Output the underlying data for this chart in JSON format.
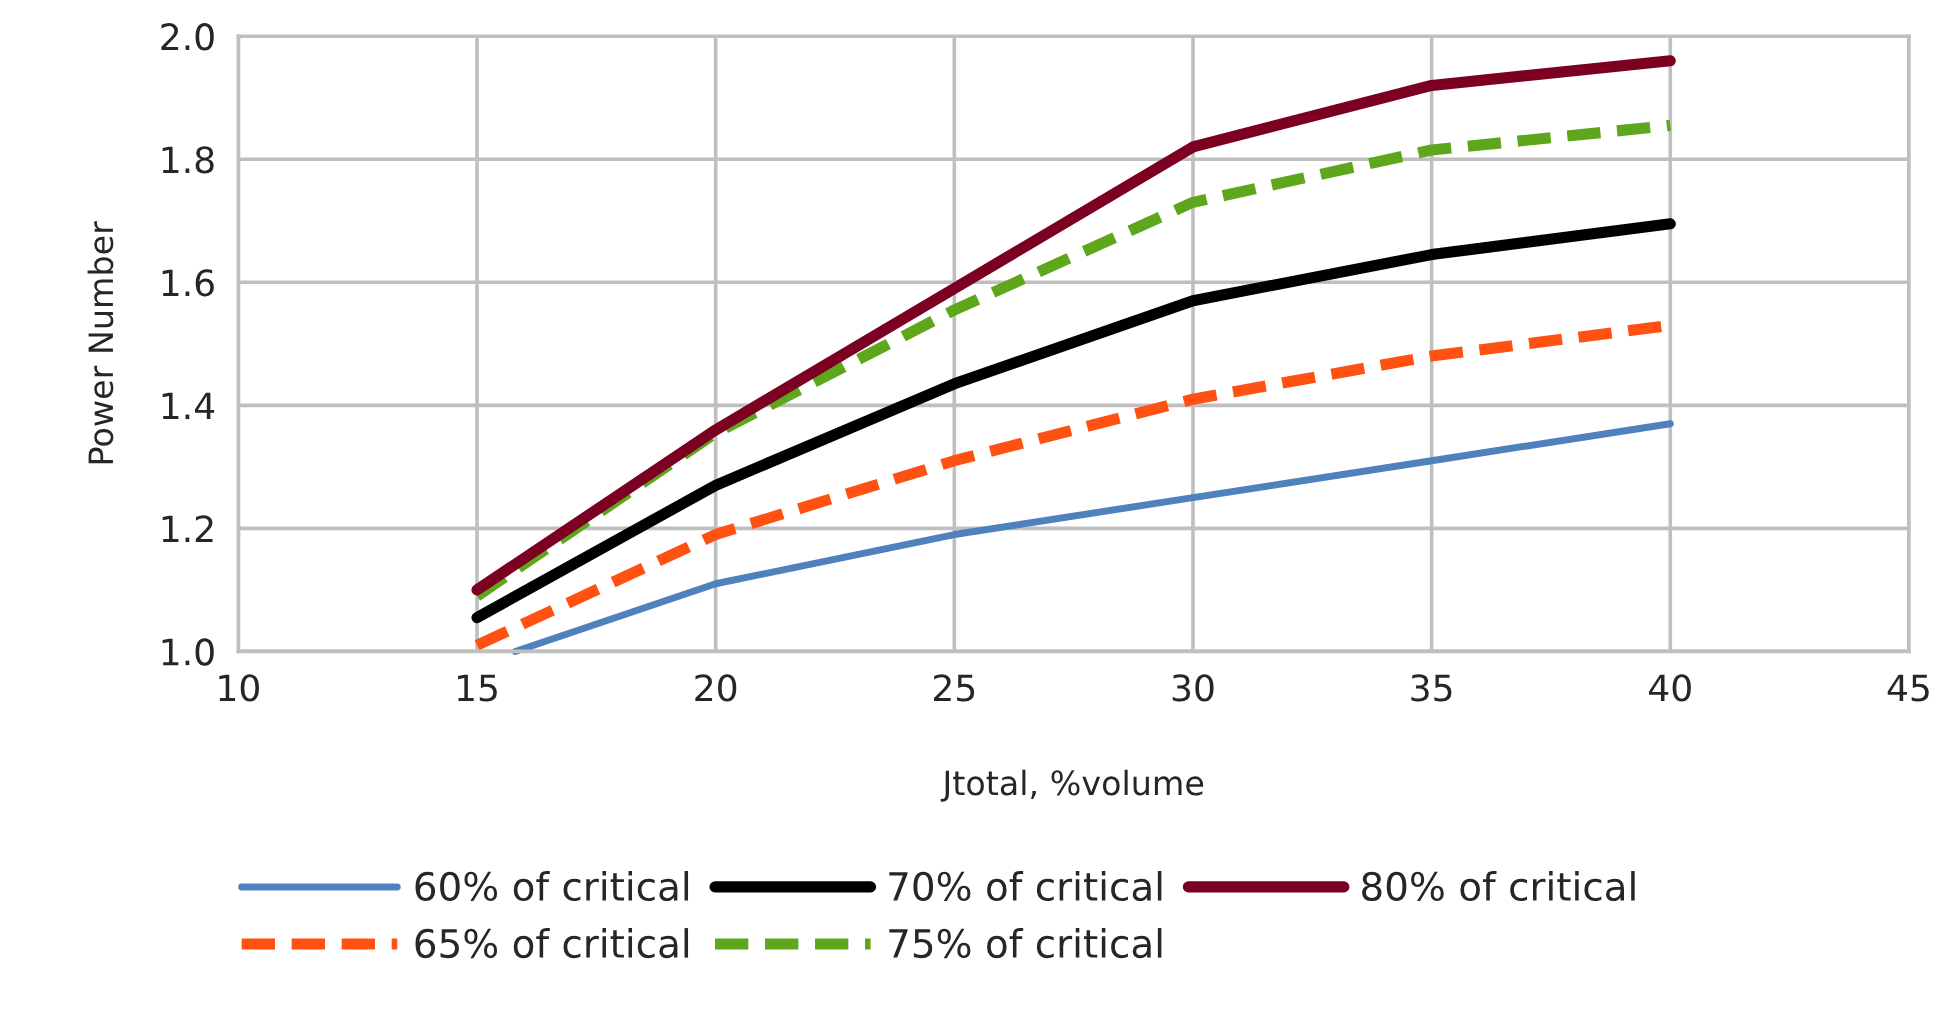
{
  "chart_data": {
    "type": "line",
    "xlabel": "Jtotal, %volume",
    "ylabel": "Power Number",
    "xlim": [
      10,
      45
    ],
    "xticks": [
      10,
      15,
      20,
      25,
      30,
      35,
      40,
      45
    ],
    "ylim": [
      1.0,
      2.0
    ],
    "yticks": [
      {
        "value": 1.0,
        "label": "1.0"
      },
      {
        "value": 1.2,
        "label": "1.2"
      },
      {
        "value": 1.4,
        "label": "1.4"
      },
      {
        "value": 1.6,
        "label": "1.6"
      },
      {
        "value": 1.8,
        "label": "1.8"
      },
      {
        "value": 2.0,
        "label": "2.0"
      }
    ],
    "grid": true,
    "legend": "bottom",
    "marker": "none",
    "series": [
      {
        "name": "60% of critical",
        "color": "#4f81bd",
        "line_style": "solid",
        "x": [
          15.8,
          20,
          25,
          30,
          35,
          40
        ],
        "values": [
          1.0,
          1.11,
          1.19,
          1.25,
          1.31,
          1.37
        ]
      },
      {
        "name": "65% of critical",
        "color": "#ff5111",
        "line_style": "dashed",
        "x": [
          15,
          20,
          25,
          30,
          35,
          40
        ],
        "values": [
          1.01,
          1.19,
          1.31,
          1.41,
          1.48,
          1.53
        ]
      },
      {
        "name": "70% of critical",
        "color": "#000000",
        "line_style": "solid",
        "x": [
          15,
          20,
          25,
          30,
          35,
          40
        ],
        "values": [
          1.055,
          1.27,
          1.435,
          1.57,
          1.645,
          1.695
        ]
      },
      {
        "name": "75% of critical",
        "color": "#5ea71c",
        "line_style": "dashed",
        "x": [
          15,
          20,
          25,
          30,
          35,
          40
        ],
        "values": [
          1.09,
          1.355,
          1.555,
          1.73,
          1.815,
          1.855
        ]
      },
      {
        "name": "80% of critical",
        "color": "#7b0022",
        "line_style": "solid",
        "x": [
          15,
          20,
          25,
          30,
          35,
          40
        ],
        "values": [
          1.1,
          1.36,
          1.59,
          1.82,
          1.92,
          1.96
        ]
      }
    ]
  }
}
